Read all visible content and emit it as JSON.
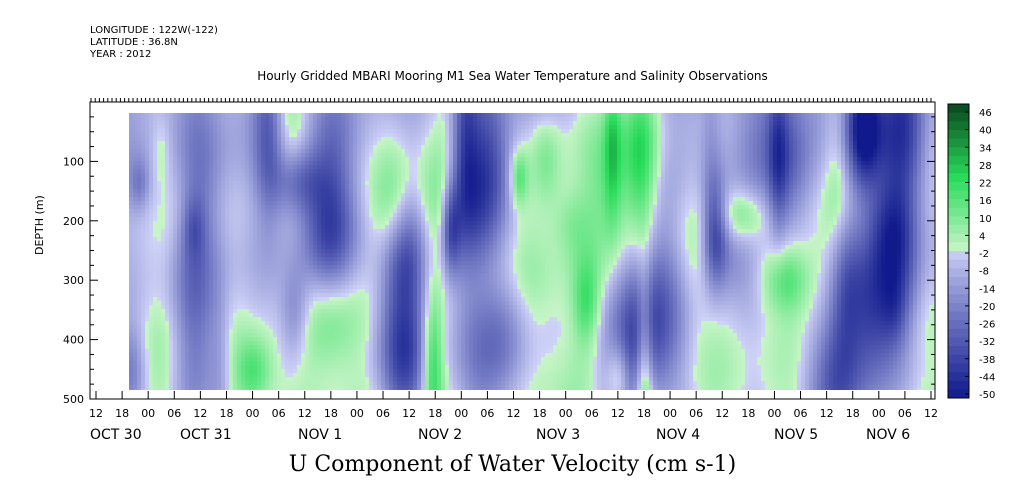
{
  "header": {
    "longitude": "LONGITUDE : 122W(-122)",
    "latitude": "LATITUDE : 36.8N",
    "year": "YEAR : 2012"
  },
  "chart_data": {
    "type": "heatmap",
    "title": "Hourly Gridded MBARI Mooring M1 Sea Water Temperature and Salinity Observations",
    "bottom_label": "U Component of Water Velocity (cm s-1)",
    "ylabel": "DEPTH (m)",
    "ylim": [
      500,
      0
    ],
    "y_ticks": [
      100,
      200,
      300,
      400,
      500
    ],
    "x_hour_ticks": [
      "12",
      "18",
      "00",
      "06",
      "12",
      "18",
      "00",
      "06",
      "12",
      "18",
      "00",
      "06",
      "12",
      "18",
      "00",
      "06",
      "12",
      "18",
      "00",
      "06",
      "12",
      "18",
      "00",
      "06",
      "12",
      "18",
      "00",
      "06",
      "12",
      "18",
      "00",
      "06",
      "12"
    ],
    "x_day_labels": [
      "OCT 30",
      "OCT 31",
      "NOV 1",
      "NOV 2",
      "NOV 3",
      "NOV 4",
      "NOV 5",
      "NOV 6"
    ],
    "colorbar_levels": [
      "46",
      "40",
      "34",
      "28",
      "22",
      "16",
      "10",
      "4",
      "-2",
      "-8",
      "-14",
      "-20",
      "-26",
      "-32",
      "-38",
      "-44",
      "-50"
    ],
    "colorbar_range": [
      -50,
      50
    ],
    "colors": {
      "strong_negative": "#0a0a78",
      "negative": "#3a5ad6",
      "weak_negative": "#aab4f0",
      "weak_positive": "#a8ecb0",
      "positive": "#2cd860",
      "strong_positive": "#0a4a1c"
    }
  }
}
